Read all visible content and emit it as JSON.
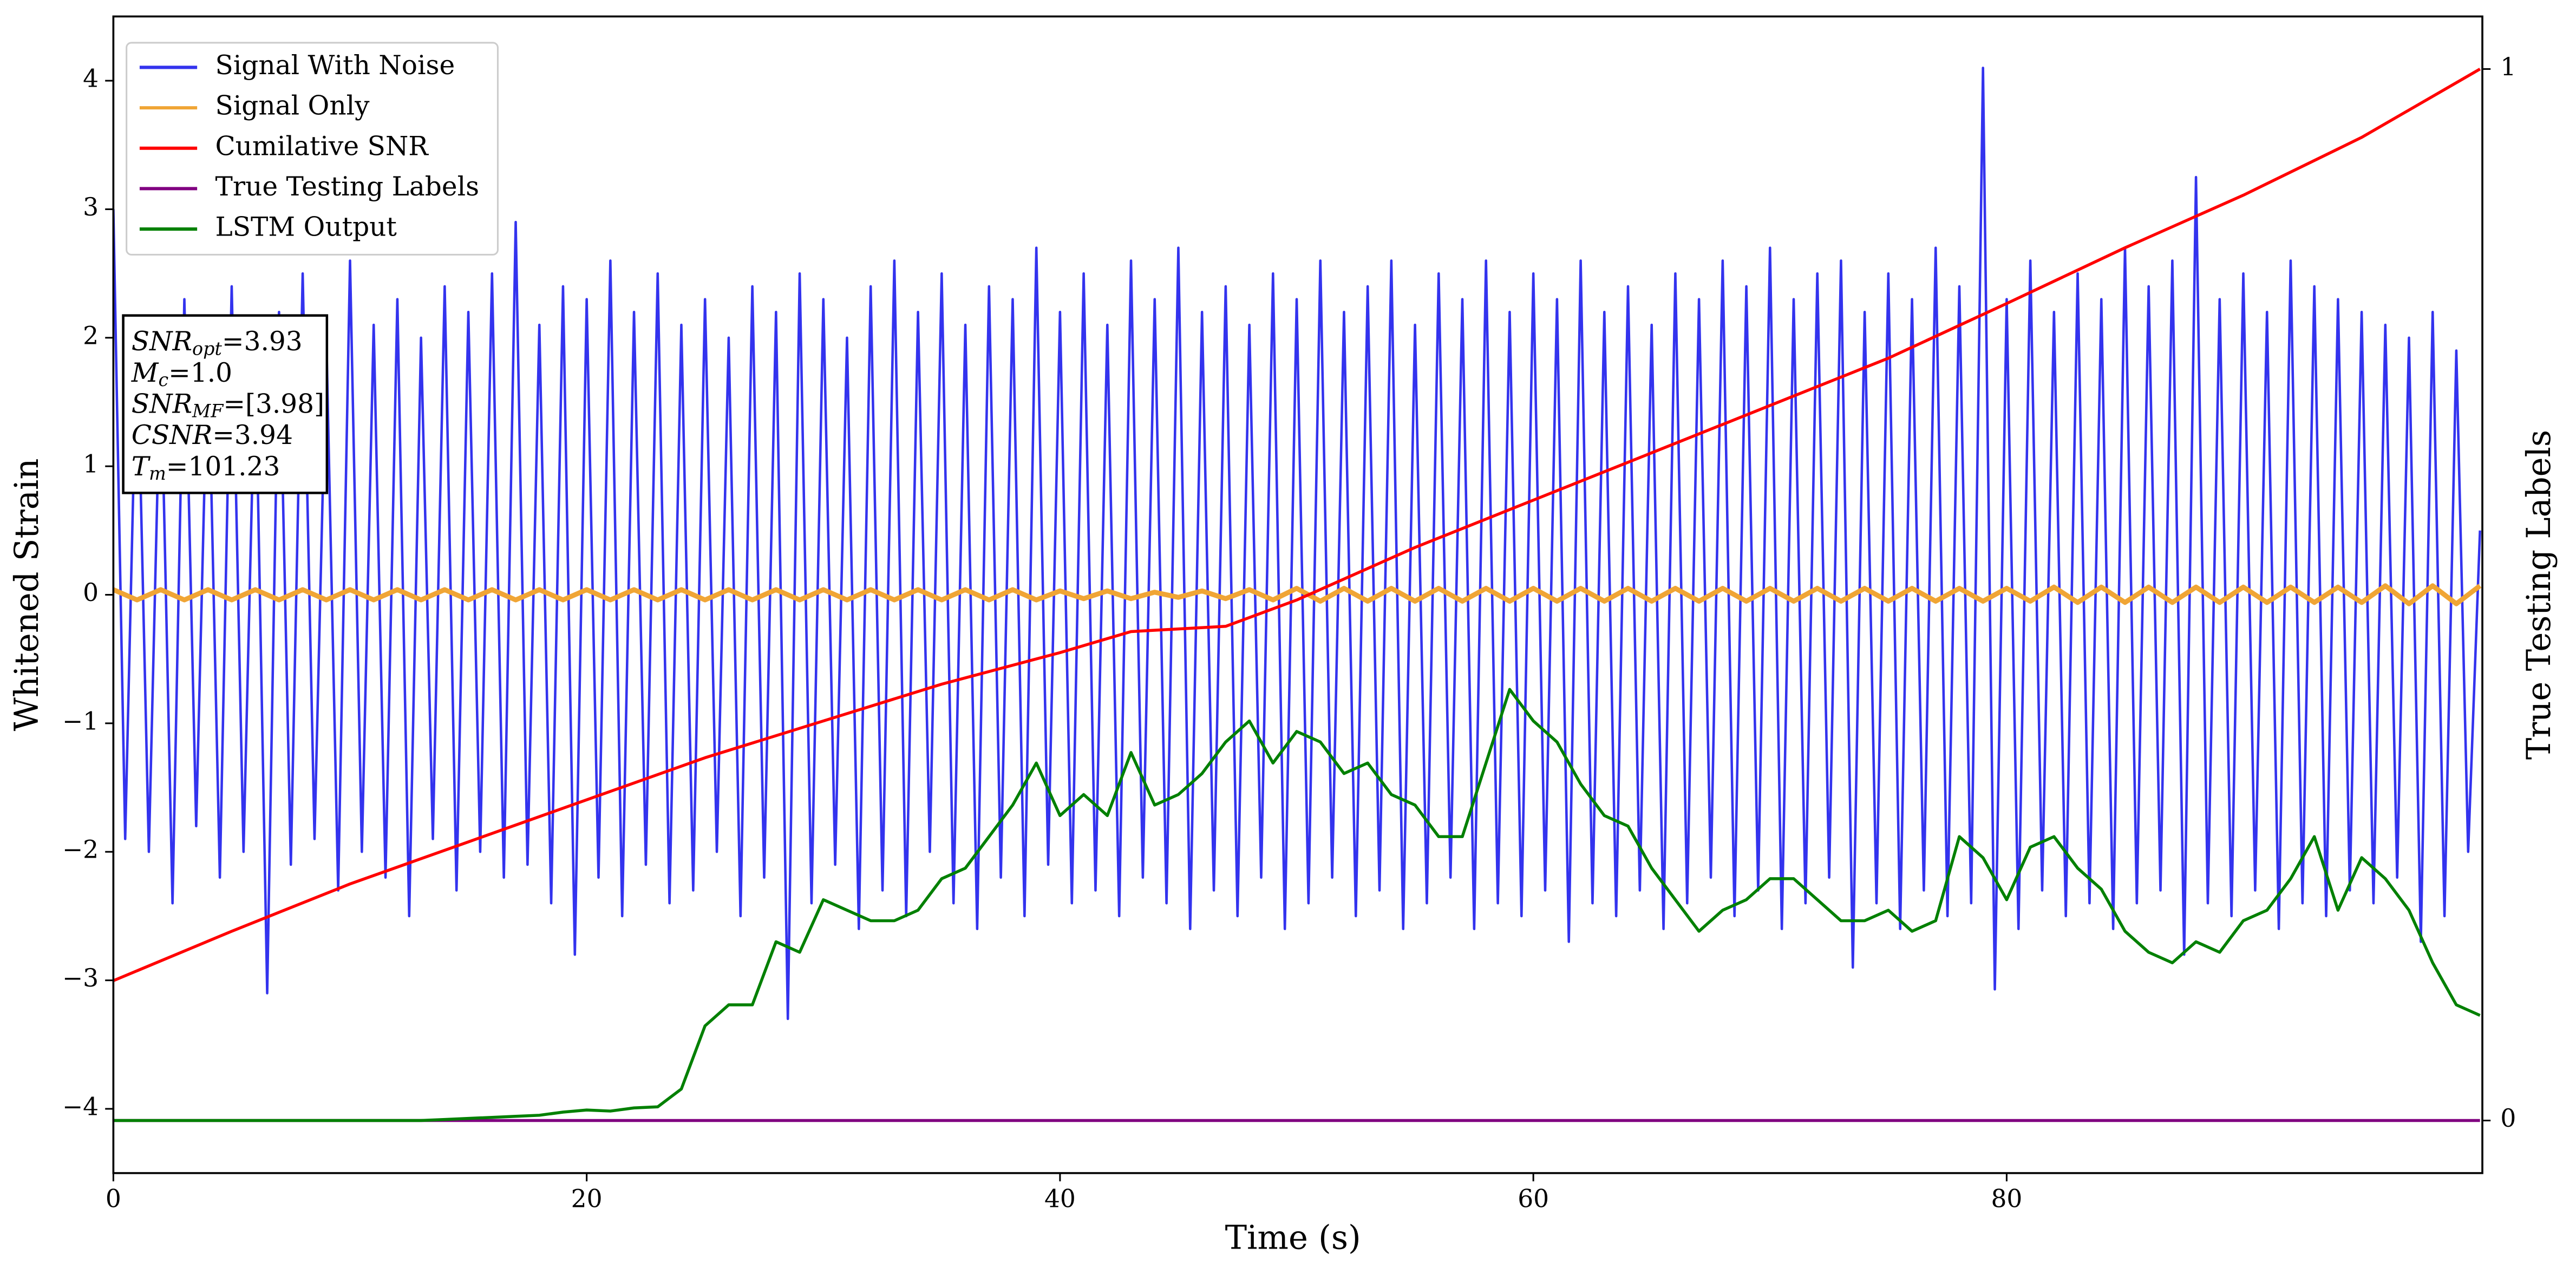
{
  "chart_data": {
    "type": "line",
    "xlabel": "Time (s)",
    "ylabel": "Whitened Strain",
    "y2label": "True Testing Labels",
    "xlim": [
      0,
      100.1
    ],
    "ylim": [
      -4.5,
      4.5
    ],
    "y2lim": [
      -0.05,
      1.05
    ],
    "xticks": [
      0,
      20,
      40,
      60,
      80
    ],
    "yticks": [
      {
        "value": -4,
        "label": "−4"
      },
      {
        "value": -3,
        "label": "−3"
      },
      {
        "value": -2,
        "label": "−2"
      },
      {
        "value": -1,
        "label": "−1"
      },
      0,
      1,
      2,
      3,
      4
    ],
    "y2ticks": [
      0,
      1
    ],
    "grid": false,
    "legend": "upper left",
    "annotation": [
      {
        "symbol": "SNR",
        "subscript": "opt",
        "text": "=3.93"
      },
      {
        "symbol": "M",
        "subscript": "c",
        "text": "=1.0"
      },
      {
        "symbol": "SNR",
        "subscript": "MF",
        "text": "=[3.98]"
      },
      {
        "symbol": "CSNR",
        "subscript": null,
        "text": "=3.94"
      },
      {
        "symbol": "T",
        "subscript": "m",
        "text": "=101.23"
      }
    ],
    "series": [
      {
        "name": "Signal With Noise",
        "color": "#3333ee",
        "axis": "y",
        "x": [
          0,
          0.5,
          1,
          1.5,
          2,
          2.5,
          3,
          3.5,
          4,
          4.5,
          5,
          5.5,
          6,
          6.5,
          7,
          7.5,
          8,
          8.5,
          9,
          9.5,
          10,
          10.5,
          11,
          11.5,
          12,
          12.5,
          13,
          13.5,
          14,
          14.5,
          15,
          15.5,
          16,
          16.5,
          17,
          17.5,
          18,
          18.5,
          19,
          19.5,
          20,
          20.5,
          21,
          21.5,
          22,
          22.5,
          23,
          23.5,
          24,
          24.5,
          25,
          25.5,
          26,
          26.5,
          27,
          27.5,
          28,
          28.5,
          29,
          29.5,
          30,
          30.5,
          31,
          31.5,
          32,
          32.5,
          33,
          33.5,
          34,
          34.5,
          35,
          35.5,
          36,
          36.5,
          37,
          37.5,
          38,
          38.5,
          39,
          39.5,
          40,
          40.5,
          41,
          41.5,
          42,
          42.5,
          43,
          43.5,
          44,
          44.5,
          45,
          45.5,
          46,
          46.5,
          47,
          47.5,
          48,
          48.5,
          49,
          49.5,
          50,
          50.5,
          51,
          51.5,
          52,
          52.5,
          53,
          53.5,
          54,
          54.5,
          55,
          55.5,
          56,
          56.5,
          57,
          57.5,
          58,
          58.5,
          59,
          59.5,
          60,
          60.5,
          61,
          61.5,
          62,
          62.5,
          63,
          63.5,
          64,
          64.5,
          65,
          65.5,
          66,
          66.5,
          67,
          67.5,
          68,
          68.5,
          69,
          69.5,
          70,
          70.5,
          71,
          71.5,
          72,
          72.5,
          73,
          73.5,
          74,
          74.5,
          75,
          75.5,
          76,
          76.5,
          77,
          77.5,
          78,
          78.5,
          79,
          79.5,
          80,
          80.5,
          81,
          81.5,
          82,
          82.5,
          83,
          83.5,
          84,
          84.5,
          85,
          85.5,
          86,
          86.5,
          87,
          87.5,
          88,
          88.5,
          89,
          89.5,
          90,
          90.5,
          91,
          91.5,
          92,
          92.5,
          93,
          93.5,
          94,
          94.5,
          95,
          95.5,
          96,
          96.5,
          97,
          97.5,
          98,
          98.5,
          99,
          99.5,
          100
        ],
        "values": [
          3.0,
          -1.9,
          2.1,
          -2.0,
          1.9,
          -2.4,
          2.3,
          -1.8,
          2.0,
          -2.2,
          2.4,
          -2.0,
          1.9,
          -3.1,
          2.2,
          -2.1,
          2.5,
          -1.9,
          2.0,
          -2.3,
          2.6,
          -2.0,
          2.1,
          -2.2,
          2.3,
          -2.5,
          2.0,
          -1.9,
          2.4,
          -2.3,
          2.2,
          -2.0,
          2.5,
          -2.2,
          2.9,
          -2.1,
          2.1,
          -2.4,
          2.4,
          -2.8,
          2.3,
          -2.2,
          2.6,
          -2.5,
          2.2,
          -2.1,
          2.5,
          -2.4,
          2.1,
          -2.3,
          2.3,
          -2.0,
          2.0,
          -2.5,
          2.4,
          -2.2,
          2.2,
          -3.3,
          2.5,
          -2.4,
          2.3,
          -2.1,
          2.0,
          -2.6,
          2.4,
          -2.3,
          2.6,
          -2.5,
          2.2,
          -2.0,
          2.5,
          -2.4,
          2.1,
          -2.6,
          2.4,
          -2.2,
          2.3,
          -2.5,
          2.7,
          -2.1,
          2.2,
          -2.4,
          2.5,
          -2.3,
          2.1,
          -2.5,
          2.6,
          -2.2,
          2.3,
          -2.4,
          2.7,
          -2.6,
          2.2,
          -2.3,
          2.4,
          -2.5,
          2.1,
          -2.2,
          2.5,
          -2.6,
          2.3,
          -2.4,
          2.6,
          -2.2,
          2.2,
          -2.5,
          2.4,
          -2.3,
          2.6,
          -2.6,
          2.1,
          -2.4,
          2.5,
          -2.2,
          2.3,
          -2.6,
          2.6,
          -2.4,
          2.2,
          -2.5,
          2.5,
          -2.3,
          2.3,
          -2.7,
          2.6,
          -2.4,
          2.2,
          -2.5,
          2.4,
          -2.3,
          2.1,
          -2.6,
          2.5,
          -2.4,
          2.3,
          -2.2,
          2.6,
          -2.5,
          2.4,
          -2.3,
          2.7,
          -2.6,
          2.3,
          -2.4,
          2.5,
          -2.2,
          2.6,
          -2.9,
          2.2,
          -2.4,
          2.5,
          -2.6,
          2.3,
          -2.3,
          2.7,
          -2.5,
          2.4,
          -2.4,
          4.1,
          -3.07,
          2.3,
          -2.6,
          2.6,
          -2.3,
          2.2,
          -2.5,
          2.5,
          -2.4,
          2.3,
          -2.6,
          2.7,
          -2.4,
          2.4,
          -2.3,
          2.6,
          -2.8,
          3.25,
          -2.4,
          2.3,
          -2.5,
          2.5,
          -2.3,
          2.2,
          -2.6,
          2.6,
          -2.4,
          2.4,
          -2.5,
          2.3,
          -2.3,
          2.2,
          -2.4,
          2.1,
          -2.2,
          2.0,
          -2.7,
          2.2,
          -2.5,
          1.9,
          -2.0,
          0.5
        ]
      },
      {
        "name": "Signal Only",
        "color": "#f0a535",
        "axis": "y",
        "x": [
          0,
          1,
          2,
          3,
          4,
          5,
          6,
          7,
          8,
          9,
          10,
          11,
          12,
          13,
          14,
          15,
          16,
          17,
          18,
          19,
          20,
          21,
          22,
          23,
          24,
          25,
          26,
          27,
          28,
          29,
          30,
          31,
          32,
          33,
          34,
          35,
          36,
          37,
          38,
          39,
          40,
          41,
          42,
          43,
          44,
          45,
          46,
          47,
          48,
          49,
          50,
          51,
          52,
          53,
          54,
          55,
          56,
          57,
          58,
          59,
          60,
          61,
          62,
          63,
          64,
          65,
          66,
          67,
          68,
          69,
          70,
          71,
          72,
          73,
          74,
          75,
          76,
          77,
          78,
          79,
          80,
          81,
          82,
          83,
          84,
          85,
          86,
          87,
          88,
          89,
          90,
          91,
          92,
          93,
          94,
          95,
          96,
          97,
          98,
          99,
          100
        ],
        "values": [
          0.04,
          -0.04,
          0.04,
          -0.04,
          0.04,
          -0.04,
          0.04,
          -0.04,
          0.04,
          -0.04,
          0.04,
          -0.04,
          0.04,
          -0.04,
          0.04,
          -0.04,
          0.04,
          -0.04,
          0.04,
          -0.04,
          0.04,
          -0.04,
          0.04,
          -0.04,
          0.04,
          -0.04,
          0.04,
          -0.04,
          0.04,
          -0.04,
          0.04,
          -0.04,
          0.04,
          -0.04,
          0.04,
          -0.04,
          0.04,
          -0.04,
          0.04,
          -0.04,
          0.03,
          -0.03,
          0.03,
          -0.03,
          0.02,
          -0.02,
          0.03,
          -0.03,
          0.04,
          -0.04,
          0.05,
          -0.05,
          0.05,
          -0.05,
          0.05,
          -0.05,
          0.05,
          -0.05,
          0.05,
          -0.05,
          0.05,
          -0.05,
          0.05,
          -0.05,
          0.05,
          -0.05,
          0.05,
          -0.05,
          0.05,
          -0.05,
          0.05,
          -0.05,
          0.05,
          -0.05,
          0.05,
          -0.05,
          0.05,
          -0.05,
          0.05,
          -0.05,
          0.05,
          -0.05,
          0.06,
          -0.06,
          0.06,
          -0.06,
          0.06,
          -0.06,
          0.06,
          -0.06,
          0.06,
          -0.06,
          0.06,
          -0.06,
          0.06,
          -0.06,
          0.07,
          -0.07,
          0.07,
          -0.07,
          0.07
        ]
      },
      {
        "name": "Cumilative SNR",
        "color": "#ff0000",
        "axis": "y2",
        "x": [
          0,
          5,
          10,
          15,
          20,
          25,
          30,
          35,
          40,
          43,
          47,
          50,
          55,
          60,
          65,
          70,
          75,
          80,
          85,
          90,
          95,
          100
        ],
        "values": [
          0.133,
          0.18,
          0.225,
          0.265,
          0.305,
          0.345,
          0.38,
          0.415,
          0.445,
          0.465,
          0.47,
          0.495,
          0.545,
          0.59,
          0.635,
          0.68,
          0.725,
          0.777,
          0.83,
          0.88,
          0.935,
          1.0
        ]
      },
      {
        "name": "True Testing Labels",
        "color": "#800080",
        "axis": "y2",
        "x": [
          0,
          100
        ],
        "values": [
          0,
          0
        ]
      },
      {
        "name": "LSTM Output",
        "color": "#008000",
        "axis": "y2",
        "x": [
          0,
          1,
          2,
          3,
          4,
          5,
          6,
          7,
          8,
          9,
          10,
          11,
          12,
          13,
          14,
          15,
          16,
          17,
          18,
          19,
          20,
          21,
          22,
          23,
          24,
          25,
          26,
          27,
          28,
          29,
          30,
          31,
          32,
          33,
          34,
          35,
          36,
          37,
          38,
          39,
          40,
          41,
          42,
          43,
          44,
          45,
          46,
          47,
          48,
          49,
          50,
          51,
          52,
          53,
          54,
          55,
          56,
          57,
          58,
          59,
          60,
          61,
          62,
          63,
          64,
          65,
          66,
          67,
          68,
          69,
          70,
          71,
          72,
          73,
          74,
          75,
          76,
          77,
          78,
          79,
          80,
          81,
          82,
          83,
          84,
          85,
          86,
          87,
          88,
          89,
          90,
          91,
          92,
          93,
          94,
          95,
          96,
          97,
          98,
          99,
          100
        ],
        "values": [
          0,
          0,
          0,
          0,
          0,
          0,
          0,
          0,
          0,
          0,
          0,
          0,
          0,
          0,
          0.001,
          0.002,
          0.003,
          0.004,
          0.005,
          0.008,
          0.01,
          0.009,
          0.012,
          0.013,
          0.03,
          0.09,
          0.11,
          0.11,
          0.17,
          0.16,
          0.21,
          0.2,
          0.19,
          0.19,
          0.2,
          0.23,
          0.24,
          0.27,
          0.3,
          0.34,
          0.29,
          0.31,
          0.29,
          0.35,
          0.3,
          0.31,
          0.33,
          0.36,
          0.38,
          0.34,
          0.37,
          0.36,
          0.33,
          0.34,
          0.31,
          0.3,
          0.27,
          0.27,
          0.34,
          0.41,
          0.38,
          0.36,
          0.32,
          0.29,
          0.28,
          0.24,
          0.21,
          0.18,
          0.2,
          0.21,
          0.23,
          0.23,
          0.21,
          0.19,
          0.19,
          0.2,
          0.18,
          0.19,
          0.27,
          0.25,
          0.21,
          0.26,
          0.27,
          0.24,
          0.22,
          0.18,
          0.16,
          0.15,
          0.17,
          0.16,
          0.19,
          0.2,
          0.23,
          0.27,
          0.2,
          0.25,
          0.23,
          0.2,
          0.15,
          0.11,
          0.1
        ]
      }
    ]
  }
}
